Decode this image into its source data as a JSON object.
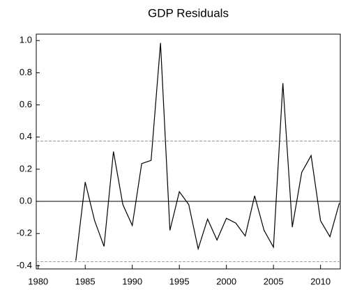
{
  "chart_data": {
    "type": "line",
    "title": "GDP Residuals",
    "x": [
      1984,
      1985,
      1986,
      1987,
      1988,
      1989,
      1990,
      1991,
      1992,
      1993,
      1994,
      1995,
      1996,
      1997,
      1998,
      1999,
      2000,
      2001,
      2002,
      2003,
      2004,
      2005,
      2006,
      2007,
      2008,
      2009,
      2010,
      2011,
      2012
    ],
    "series": [
      {
        "color": "#000000",
        "values": [
          -0.37,
          0.12,
          -0.12,
          -0.28,
          0.31,
          -0.02,
          -0.15,
          0.235,
          0.255,
          0.985,
          -0.18,
          0.06,
          -0.02,
          -0.295,
          -0.11,
          -0.24,
          -0.105,
          -0.135,
          -0.215,
          0.035,
          -0.18,
          -0.285,
          0.735,
          -0.16,
          0.18,
          0.285,
          -0.12,
          -0.22,
          -0.01
        ]
      }
    ],
    "xlim": [
      1979.8,
      2012.1
    ],
    "xticks": [
      1980,
      1985,
      1990,
      1995,
      2000,
      2005,
      2010
    ],
    "ylim": [
      -0.42,
      1.04
    ],
    "yticks": [
      {
        "value": -0.4,
        "label": "-0.4"
      },
      {
        "value": -0.2,
        "label": "-0.2"
      },
      {
        "value": 0,
        "label": "0.0"
      },
      {
        "value": 0.2,
        "label": "0.2"
      },
      {
        "value": 0.4,
        "label": "0.4"
      },
      {
        "value": 0.6,
        "label": "0.6"
      },
      {
        "value": 0.8,
        "label": "0.8"
      },
      {
        "value": 1.0,
        "label": "1.0"
      }
    ],
    "reference_lines": [
      {
        "value": 0,
        "color": "#000000",
        "dashed": false
      },
      {
        "value": 0.375,
        "color": "#999999",
        "dashed": true
      },
      {
        "value": -0.375,
        "color": "#999999",
        "dashed": true
      }
    ]
  }
}
